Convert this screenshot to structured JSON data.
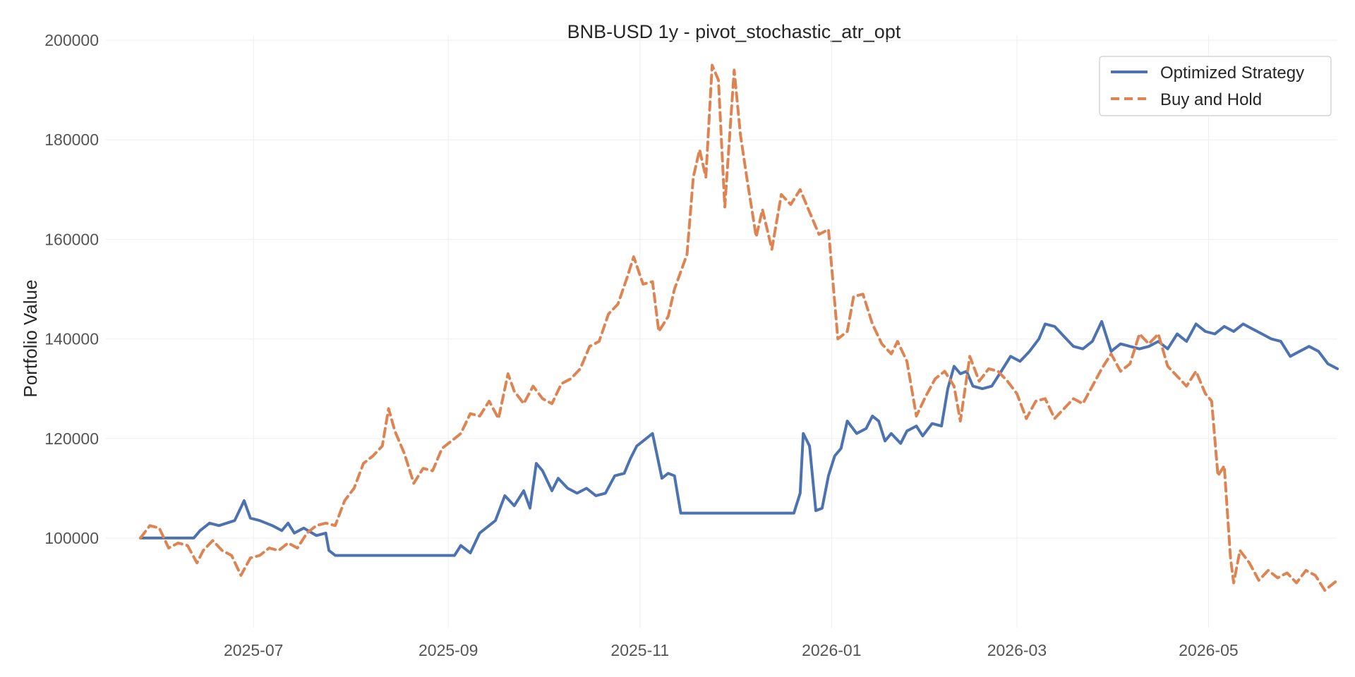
{
  "chart_data": {
    "type": "line",
    "title": "BNB-USD 1y - pivot_stochastic_atr_opt",
    "xlabel": "",
    "ylabel": "Portfolio Value",
    "x_axis": {
      "type": "date",
      "range": [
        "2025-05-15",
        "2026-06-11"
      ],
      "ticks": [
        "2025-07-01",
        "2025-09-01",
        "2025-11-01",
        "2026-01-01",
        "2026-03-01",
        "2026-05-01"
      ],
      "tick_labels": [
        "2025-07",
        "2025-09",
        "2025-11",
        "2026-01",
        "2026-03",
        "2026-05"
      ]
    },
    "y_axis": {
      "range": [
        82000,
        201000
      ],
      "ticks": [
        100000,
        120000,
        140000,
        160000,
        180000,
        200000
      ],
      "tick_labels": [
        "100000",
        "120000",
        "140000",
        "160000",
        "180000",
        "200000"
      ]
    },
    "grid": true,
    "legend": {
      "position": "top-right"
    },
    "series": [
      {
        "name": "Optimized Strategy",
        "color": "#4c72b0",
        "style": "solid",
        "points": [
          [
            "2025-05-26",
            100000
          ],
          [
            "2025-06-12",
            100000
          ],
          [
            "2025-06-14",
            101500
          ],
          [
            "2025-06-17",
            103000
          ],
          [
            "2025-06-20",
            102500
          ],
          [
            "2025-06-25",
            103500
          ],
          [
            "2025-06-28",
            107500
          ],
          [
            "2025-06-30",
            104000
          ],
          [
            "2025-07-03",
            103500
          ],
          [
            "2025-07-07",
            102500
          ],
          [
            "2025-07-10",
            101500
          ],
          [
            "2025-07-12",
            103000
          ],
          [
            "2025-07-14",
            101000
          ],
          [
            "2025-07-17",
            102000
          ],
          [
            "2025-07-21",
            100500
          ],
          [
            "2025-07-24",
            101000
          ],
          [
            "2025-07-25",
            97500
          ],
          [
            "2025-07-27",
            96500
          ],
          [
            "2025-09-03",
            96500
          ],
          [
            "2025-09-05",
            98500
          ],
          [
            "2025-09-08",
            97000
          ],
          [
            "2025-09-11",
            101000
          ],
          [
            "2025-09-16",
            103500
          ],
          [
            "2025-09-19",
            108500
          ],
          [
            "2025-09-22",
            106500
          ],
          [
            "2025-09-25",
            109500
          ],
          [
            "2025-09-27",
            106000
          ],
          [
            "2025-09-29",
            115000
          ],
          [
            "2025-10-01",
            113500
          ],
          [
            "2025-10-04",
            109500
          ],
          [
            "2025-10-06",
            112000
          ],
          [
            "2025-10-09",
            110000
          ],
          [
            "2025-10-12",
            109000
          ],
          [
            "2025-10-15",
            110000
          ],
          [
            "2025-10-18",
            108500
          ],
          [
            "2025-10-21",
            109000
          ],
          [
            "2025-10-24",
            112500
          ],
          [
            "2025-10-27",
            113000
          ],
          [
            "2025-10-29",
            116000
          ],
          [
            "2025-10-31",
            118500
          ],
          [
            "2025-11-03",
            120000
          ],
          [
            "2025-11-05",
            121000
          ],
          [
            "2025-11-08",
            112000
          ],
          [
            "2025-11-10",
            113000
          ],
          [
            "2025-11-12",
            112500
          ],
          [
            "2025-11-14",
            105000
          ],
          [
            "2025-11-18",
            105000
          ],
          [
            "2025-12-20",
            105000
          ],
          [
            "2025-12-22",
            109000
          ],
          [
            "2025-12-23",
            121000
          ],
          [
            "2025-12-25",
            118500
          ],
          [
            "2025-12-27",
            105500
          ],
          [
            "2025-12-29",
            106000
          ],
          [
            "2025-12-31",
            112500
          ],
          [
            "2026-01-02",
            116500
          ],
          [
            "2026-01-04",
            118000
          ],
          [
            "2026-01-06",
            123500
          ],
          [
            "2026-01-09",
            121000
          ],
          [
            "2026-01-12",
            122000
          ],
          [
            "2026-01-14",
            124500
          ],
          [
            "2026-01-16",
            123500
          ],
          [
            "2026-01-18",
            119500
          ],
          [
            "2026-01-20",
            121000
          ],
          [
            "2026-01-23",
            119000
          ],
          [
            "2026-01-25",
            121500
          ],
          [
            "2026-01-28",
            122500
          ],
          [
            "2026-01-30",
            120500
          ],
          [
            "2026-02-02",
            123000
          ],
          [
            "2026-02-05",
            122500
          ],
          [
            "2026-02-07",
            130000
          ],
          [
            "2026-02-09",
            134500
          ],
          [
            "2026-02-11",
            133000
          ],
          [
            "2026-02-13",
            133500
          ],
          [
            "2026-02-15",
            130500
          ],
          [
            "2026-02-18",
            130000
          ],
          [
            "2026-02-21",
            130500
          ],
          [
            "2026-02-24",
            133500
          ],
          [
            "2026-02-27",
            136500
          ],
          [
            "2026-03-02",
            135500
          ],
          [
            "2026-03-05",
            137500
          ],
          [
            "2026-03-08",
            140000
          ],
          [
            "2026-03-10",
            143000
          ],
          [
            "2026-03-13",
            142500
          ],
          [
            "2026-03-16",
            140500
          ],
          [
            "2026-03-19",
            138500
          ],
          [
            "2026-03-22",
            138000
          ],
          [
            "2026-03-25",
            139500
          ],
          [
            "2026-03-28",
            143500
          ],
          [
            "2026-03-31",
            137500
          ],
          [
            "2026-04-03",
            139000
          ],
          [
            "2026-04-06",
            138500
          ],
          [
            "2026-04-09",
            138000
          ],
          [
            "2026-04-12",
            138500
          ],
          [
            "2026-04-15",
            139500
          ],
          [
            "2026-04-18",
            138000
          ],
          [
            "2026-04-21",
            141000
          ],
          [
            "2026-04-24",
            139500
          ],
          [
            "2026-04-27",
            143000
          ],
          [
            "2026-04-30",
            141500
          ],
          [
            "2026-05-03",
            141000
          ],
          [
            "2026-05-06",
            142500
          ],
          [
            "2026-05-09",
            141500
          ],
          [
            "2026-05-12",
            143000
          ],
          [
            "2026-05-15",
            142000
          ],
          [
            "2026-05-18",
            141000
          ],
          [
            "2026-05-21",
            140000
          ],
          [
            "2026-05-24",
            139500
          ],
          [
            "2026-05-27",
            136500
          ],
          [
            "2026-05-30",
            137500
          ],
          [
            "2026-06-02",
            138500
          ],
          [
            "2026-06-05",
            137500
          ],
          [
            "2026-06-08",
            135000
          ],
          [
            "2026-06-11",
            134000
          ]
        ]
      },
      {
        "name": "Buy and Hold",
        "color": "#dd8452",
        "style": "dashed",
        "points": [
          [
            "2025-05-26",
            100000
          ],
          [
            "2025-05-29",
            102500
          ],
          [
            "2025-06-01",
            102000
          ],
          [
            "2025-06-04",
            98000
          ],
          [
            "2025-06-07",
            99000
          ],
          [
            "2025-06-10",
            98500
          ],
          [
            "2025-06-13",
            95000
          ],
          [
            "2025-06-15",
            97500
          ],
          [
            "2025-06-18",
            99500
          ],
          [
            "2025-06-21",
            97500
          ],
          [
            "2025-06-24",
            96500
          ],
          [
            "2025-06-27",
            92500
          ],
          [
            "2025-06-30",
            96000
          ],
          [
            "2025-07-03",
            96500
          ],
          [
            "2025-07-06",
            98000
          ],
          [
            "2025-07-09",
            97500
          ],
          [
            "2025-07-12",
            99000
          ],
          [
            "2025-07-15",
            98000
          ],
          [
            "2025-07-18",
            101000
          ],
          [
            "2025-07-21",
            102500
          ],
          [
            "2025-07-24",
            103000
          ],
          [
            "2025-07-27",
            102500
          ],
          [
            "2025-07-30",
            107500
          ],
          [
            "2025-08-02",
            110000
          ],
          [
            "2025-08-05",
            115000
          ],
          [
            "2025-08-08",
            116500
          ],
          [
            "2025-08-11",
            118500
          ],
          [
            "2025-08-13",
            126000
          ],
          [
            "2025-08-15",
            121500
          ],
          [
            "2025-08-18",
            117000
          ],
          [
            "2025-08-21",
            111000
          ],
          [
            "2025-08-24",
            114000
          ],
          [
            "2025-08-27",
            113500
          ],
          [
            "2025-08-30",
            118000
          ],
          [
            "2025-09-02",
            119500
          ],
          [
            "2025-09-05",
            121000
          ],
          [
            "2025-09-08",
            125000
          ],
          [
            "2025-09-11",
            124500
          ],
          [
            "2025-09-14",
            127500
          ],
          [
            "2025-09-17",
            124000
          ],
          [
            "2025-09-20",
            133000
          ],
          [
            "2025-09-22",
            129500
          ],
          [
            "2025-09-25",
            127000
          ],
          [
            "2025-09-28",
            130500
          ],
          [
            "2025-10-01",
            128000
          ],
          [
            "2025-10-04",
            127000
          ],
          [
            "2025-10-07",
            131000
          ],
          [
            "2025-10-10",
            132000
          ],
          [
            "2025-10-13",
            134000
          ],
          [
            "2025-10-16",
            138500
          ],
          [
            "2025-10-19",
            139500
          ],
          [
            "2025-10-22",
            145000
          ],
          [
            "2025-10-25",
            147000
          ],
          [
            "2025-10-28",
            152500
          ],
          [
            "2025-10-30",
            156500
          ],
          [
            "2025-11-02",
            151000
          ],
          [
            "2025-11-05",
            151500
          ],
          [
            "2025-11-07",
            141500
          ],
          [
            "2025-11-10",
            144500
          ],
          [
            "2025-11-12",
            150000
          ],
          [
            "2025-11-14",
            153500
          ],
          [
            "2025-11-16",
            157000
          ],
          [
            "2025-11-18",
            172500
          ],
          [
            "2025-11-20",
            178000
          ],
          [
            "2025-11-22",
            172500
          ],
          [
            "2025-11-24",
            195000
          ],
          [
            "2025-11-26",
            192000
          ],
          [
            "2025-11-28",
            166500
          ],
          [
            "2025-12-01",
            194000
          ],
          [
            "2025-12-03",
            181000
          ],
          [
            "2025-12-05",
            172500
          ],
          [
            "2025-12-08",
            160500
          ],
          [
            "2025-12-10",
            166000
          ],
          [
            "2025-12-13",
            158000
          ],
          [
            "2025-12-16",
            169000
          ],
          [
            "2025-12-19",
            167000
          ],
          [
            "2025-12-22",
            170000
          ],
          [
            "2025-12-25",
            165500
          ],
          [
            "2025-12-28",
            161000
          ],
          [
            "2025-12-31",
            162000
          ],
          [
            "2026-01-03",
            140000
          ],
          [
            "2026-01-06",
            141500
          ],
          [
            "2026-01-08",
            148500
          ],
          [
            "2026-01-11",
            149000
          ],
          [
            "2026-01-14",
            143000
          ],
          [
            "2026-01-17",
            139000
          ],
          [
            "2026-01-20",
            137000
          ],
          [
            "2026-01-22",
            139500
          ],
          [
            "2026-01-25",
            135500
          ],
          [
            "2026-01-28",
            124500
          ],
          [
            "2026-01-31",
            128500
          ],
          [
            "2026-02-03",
            132000
          ],
          [
            "2026-02-06",
            133500
          ],
          [
            "2026-02-09",
            130500
          ],
          [
            "2026-02-11",
            123500
          ],
          [
            "2026-02-14",
            136500
          ],
          [
            "2026-02-17",
            131500
          ],
          [
            "2026-02-20",
            134000
          ],
          [
            "2026-02-23",
            133500
          ],
          [
            "2026-02-26",
            131500
          ],
          [
            "2026-03-01",
            129000
          ],
          [
            "2026-03-04",
            124000
          ],
          [
            "2026-03-07",
            127500
          ],
          [
            "2026-03-10",
            128000
          ],
          [
            "2026-03-13",
            124000
          ],
          [
            "2026-03-16",
            126000
          ],
          [
            "2026-03-19",
            128000
          ],
          [
            "2026-03-22",
            127000
          ],
          [
            "2026-03-25",
            130500
          ],
          [
            "2026-03-28",
            134000
          ],
          [
            "2026-03-31",
            137000
          ],
          [
            "2026-04-03",
            133500
          ],
          [
            "2026-04-06",
            135000
          ],
          [
            "2026-04-09",
            141000
          ],
          [
            "2026-04-12",
            139000
          ],
          [
            "2026-04-15",
            141000
          ],
          [
            "2026-04-18",
            134500
          ],
          [
            "2026-04-21",
            132500
          ],
          [
            "2026-04-24",
            130500
          ],
          [
            "2026-04-27",
            133500
          ],
          [
            "2026-04-30",
            129000
          ],
          [
            "2026-05-02",
            127500
          ],
          [
            "2026-05-04",
            112500
          ],
          [
            "2026-05-06",
            114500
          ],
          [
            "2026-05-08",
            96000
          ],
          [
            "2026-05-09",
            91000
          ],
          [
            "2026-05-11",
            97500
          ],
          [
            "2026-05-14",
            95000
          ],
          [
            "2026-05-17",
            91500
          ],
          [
            "2026-05-20",
            93500
          ],
          [
            "2026-05-23",
            92000
          ],
          [
            "2026-05-26",
            93000
          ],
          [
            "2026-05-29",
            91000
          ],
          [
            "2026-06-01",
            93500
          ],
          [
            "2026-06-04",
            92500
          ],
          [
            "2026-06-07",
            89500
          ],
          [
            "2026-06-11",
            91500
          ]
        ]
      }
    ]
  }
}
